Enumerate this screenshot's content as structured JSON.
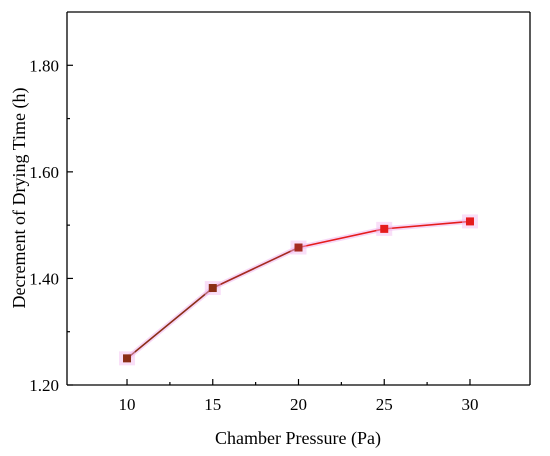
{
  "chart_data": {
    "type": "line",
    "xlabel": "Chamber Pressure (Pa)",
    "ylabel": "Decrement of  Drying Time (h)",
    "xlim": [
      6.5,
      33.5
    ],
    "ylim": [
      1.2,
      1.9
    ],
    "x_ticks": [
      "10",
      "15",
      "20",
      "25",
      "30"
    ],
    "y_ticks": [
      "1.20",
      "1.40",
      "1.60",
      "1.80"
    ],
    "grid": false,
    "series": [
      {
        "x": [
          10,
          15,
          20,
          25,
          30
        ],
        "y": [
          1.25,
          1.382,
          1.458,
          1.493,
          1.507
        ],
        "colors": [
          "#8B2E16",
          "#8B2E16",
          "#A52A20",
          "#E51C1C",
          "#E51C1C"
        ],
        "highlight": "#F2B8F0"
      }
    ]
  }
}
